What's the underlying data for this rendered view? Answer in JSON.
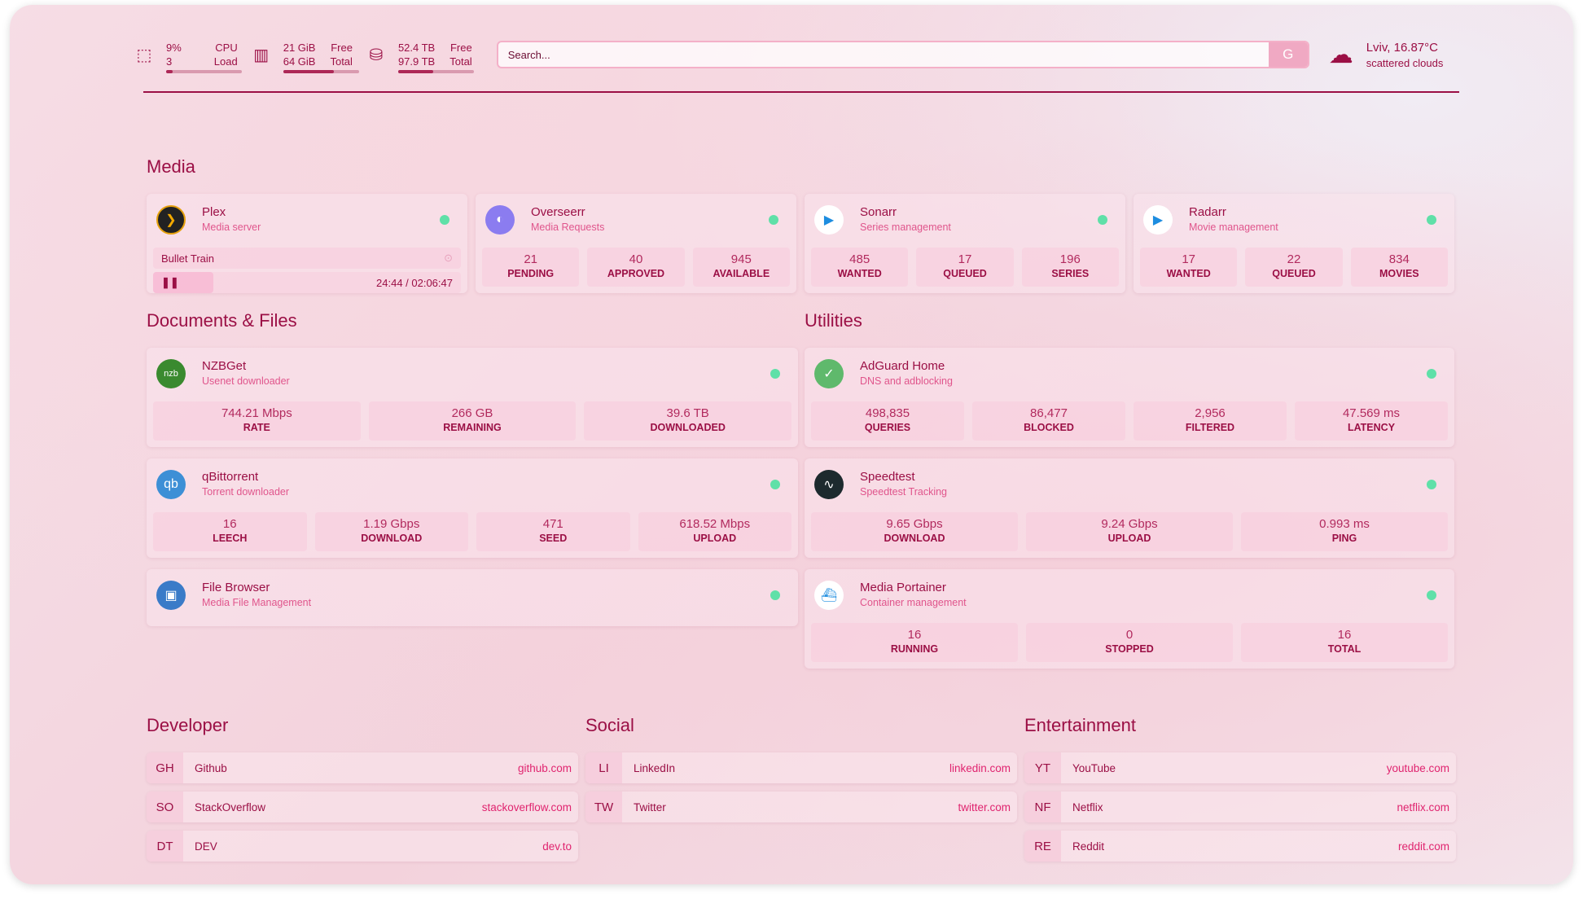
{
  "header": {
    "cpu": {
      "icon": "cpu-icon",
      "value": "9%",
      "value2": "3",
      "label": "CPU",
      "label2": "Load",
      "usage": 0.09
    },
    "memory": {
      "icon": "memory-icon",
      "value": "21 GiB",
      "value2": "64 GiB",
      "label": "Free",
      "label2": "Total",
      "usage": 0.67
    },
    "disk": {
      "icon": "disk-icon",
      "value": "52.4 TB",
      "value2": "97.9 TB",
      "label": "Free",
      "label2": "Total",
      "usage": 0.46
    },
    "search": {
      "placeholder": "Search...",
      "provider": "G"
    },
    "weather": {
      "icon": "cloud-sun-icon",
      "location": "Lviv, 16.87°C",
      "condition": "scattered clouds"
    }
  },
  "colors": {
    "accent": "#9b0f45",
    "status_up": "#5fe0a8",
    "link": "#e0246f"
  },
  "sections": {
    "media": "Media",
    "documents": "Documents & Files",
    "utilities": "Utilities",
    "developer": "Developer",
    "social": "Social",
    "entertainment": "Entertainment"
  },
  "plex": {
    "name": "Plex",
    "description": "Media server",
    "now_playing": "Bullet Train",
    "time": "24:44 / 02:06:47",
    "progress": 0.195
  },
  "services": [
    {
      "id": "overseerr",
      "name": "Overseerr",
      "description": "Media Requests",
      "stats": [
        {
          "v": "21",
          "l": "PENDING"
        },
        {
          "v": "40",
          "l": "APPROVED"
        },
        {
          "v": "945",
          "l": "AVAILABLE"
        }
      ]
    },
    {
      "id": "sonarr",
      "name": "Sonarr",
      "description": "Series management",
      "stats": [
        {
          "v": "485",
          "l": "WANTED"
        },
        {
          "v": "17",
          "l": "QUEUED"
        },
        {
          "v": "196",
          "l": "SERIES"
        }
      ]
    },
    {
      "id": "radarr",
      "name": "Radarr",
      "description": "Movie management",
      "stats": [
        {
          "v": "17",
          "l": "WANTED"
        },
        {
          "v": "22",
          "l": "QUEUED"
        },
        {
          "v": "834",
          "l": "MOVIES"
        }
      ]
    },
    {
      "id": "nzbget",
      "name": "NZBGet",
      "description": "Usenet downloader",
      "stats": [
        {
          "v": "744.21 Mbps",
          "l": "RATE"
        },
        {
          "v": "266 GB",
          "l": "REMAINING"
        },
        {
          "v": "39.6 TB",
          "l": "DOWNLOADED"
        }
      ]
    },
    {
      "id": "qbittorrent",
      "name": "qBittorrent",
      "description": "Torrent downloader",
      "stats": [
        {
          "v": "16",
          "l": "LEECH"
        },
        {
          "v": "1.19 Gbps",
          "l": "DOWNLOAD"
        },
        {
          "v": "471",
          "l": "SEED"
        },
        {
          "v": "618.52 Mbps",
          "l": "UPLOAD"
        }
      ]
    },
    {
      "id": "filebrowser",
      "name": "File Browser",
      "description": "Media File Management",
      "stats": []
    },
    {
      "id": "adguard",
      "name": "AdGuard Home",
      "description": "DNS and adblocking",
      "stats": [
        {
          "v": "498,835",
          "l": "QUERIES"
        },
        {
          "v": "86,477",
          "l": "BLOCKED"
        },
        {
          "v": "2,956",
          "l": "FILTERED"
        },
        {
          "v": "47.569 ms",
          "l": "LATENCY"
        }
      ]
    },
    {
      "id": "speedtest",
      "name": "Speedtest",
      "description": "Speedtest Tracking",
      "stats": [
        {
          "v": "9.65 Gbps",
          "l": "DOWNLOAD"
        },
        {
          "v": "9.24 Gbps",
          "l": "UPLOAD"
        },
        {
          "v": "0.993 ms",
          "l": "PING"
        }
      ]
    },
    {
      "id": "portainer",
      "name": "Media Portainer",
      "description": "Container management",
      "stats": [
        {
          "v": "16",
          "l": "RUNNING"
        },
        {
          "v": "0",
          "l": "STOPPED"
        },
        {
          "v": "16",
          "l": "TOTAL"
        }
      ]
    }
  ],
  "bookmarks": {
    "developer": [
      {
        "abbr": "GH",
        "name": "Github",
        "url": "github.com"
      },
      {
        "abbr": "SO",
        "name": "StackOverflow",
        "url": "stackoverflow.com"
      },
      {
        "abbr": "DT",
        "name": "DEV",
        "url": "dev.to"
      }
    ],
    "social": [
      {
        "abbr": "LI",
        "name": "LinkedIn",
        "url": "linkedin.com"
      },
      {
        "abbr": "TW",
        "name": "Twitter",
        "url": "twitter.com"
      }
    ],
    "entertainment": [
      {
        "abbr": "YT",
        "name": "YouTube",
        "url": "youtube.com"
      },
      {
        "abbr": "NF",
        "name": "Netflix",
        "url": "netflix.com"
      },
      {
        "abbr": "RE",
        "name": "Reddit",
        "url": "reddit.com"
      }
    ]
  }
}
